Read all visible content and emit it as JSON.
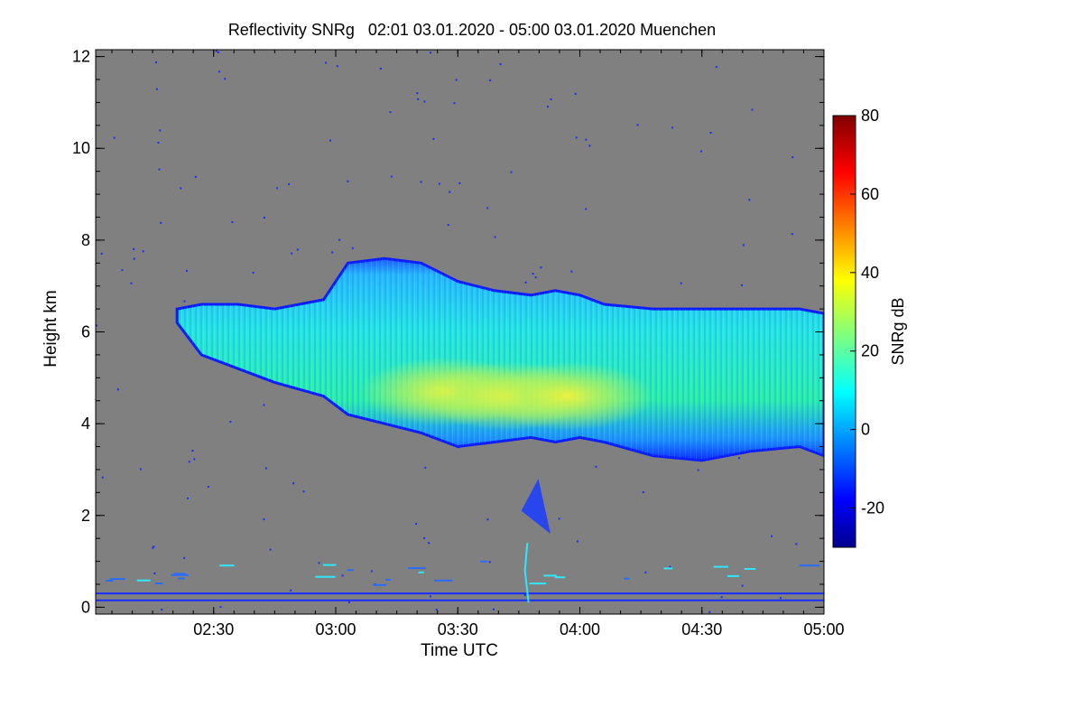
{
  "chart_data": {
    "type": "heatmap",
    "title": "Reflectivity SNRg   02:01 03.01.2020 - 05:00 03.01.2020 Muenchen",
    "xlabel": "Time UTC",
    "ylabel": "Height km",
    "x_range_hours": [
      2.0167,
      5.0
    ],
    "y_range_km": [
      -0.15,
      12.15
    ],
    "x_ticks": [
      {
        "label": "02:30",
        "value": 2.5
      },
      {
        "label": "03:00",
        "value": 3.0
      },
      {
        "label": "03:30",
        "value": 3.5
      },
      {
        "label": "04:00",
        "value": 4.0
      },
      {
        "label": "04:30",
        "value": 4.5
      },
      {
        "label": "05:00",
        "value": 5.0
      }
    ],
    "y_ticks": [
      {
        "label": "0",
        "value": 0
      },
      {
        "label": "2",
        "value": 2
      },
      {
        "label": "4",
        "value": 4
      },
      {
        "label": "6",
        "value": 6
      },
      {
        "label": "8",
        "value": 8
      },
      {
        "label": "10",
        "value": 10
      },
      {
        "label": "12",
        "value": 12
      }
    ],
    "colorbar": {
      "label": "SNRg dB",
      "range": [
        -30,
        80
      ],
      "ticks": [
        {
          "label": "-20",
          "value": -20
        },
        {
          "label": "0",
          "value": 0
        },
        {
          "label": "20",
          "value": 20
        },
        {
          "label": "40",
          "value": 40
        },
        {
          "label": "60",
          "value": 60
        },
        {
          "label": "80",
          "value": 80
        }
      ]
    },
    "background_color": "#808080",
    "cloud": {
      "time_hours": [
        2.35,
        2.45,
        2.6,
        2.75,
        2.95,
        3.05,
        3.2,
        3.35,
        3.5,
        3.65,
        3.8,
        3.9,
        4.0,
        4.1,
        4.3,
        4.5,
        4.7,
        4.9,
        5.0
      ],
      "top_km": [
        6.5,
        6.6,
        6.6,
        6.5,
        6.7,
        7.5,
        7.6,
        7.5,
        7.1,
        6.9,
        6.8,
        6.9,
        6.8,
        6.6,
        6.5,
        6.5,
        6.5,
        6.5,
        6.4
      ],
      "base_km": [
        6.2,
        5.5,
        5.2,
        4.9,
        4.6,
        4.2,
        4.0,
        3.8,
        3.5,
        3.6,
        3.7,
        3.6,
        3.7,
        3.6,
        3.3,
        3.2,
        3.4,
        3.5,
        3.3
      ],
      "core": {
        "time_hours": [
          3.45,
          3.7,
          3.95
        ],
        "height_km": [
          4.7,
          4.6,
          4.6
        ],
        "snr_db": 32
      }
    },
    "low_layers_km": [
      0.15,
      0.3
    ]
  }
}
